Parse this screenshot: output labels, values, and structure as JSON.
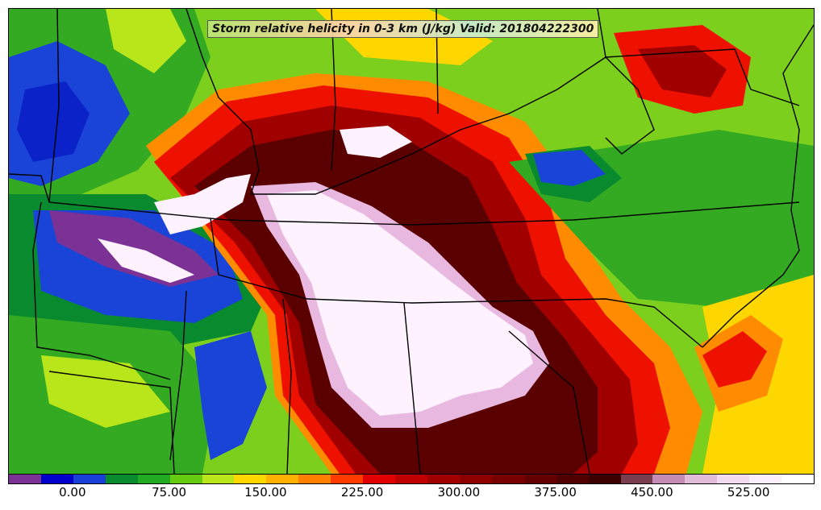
{
  "title": "Storm relative helicity in 0-3 km (J/kg) Valid: 201804222300",
  "colorbar": {
    "colors": [
      "#7b3294",
      "#0000cc",
      "#1a3fd6",
      "#0a8a2e",
      "#22aa22",
      "#66cc11",
      "#b8e61a",
      "#ffd700",
      "#ffb000",
      "#ff7f00",
      "#ff3b00",
      "#e00000",
      "#c00000",
      "#a00000",
      "#8c0000",
      "#780000",
      "#640000",
      "#500000",
      "#3c0000",
      "#7a3d50",
      "#c48cb4",
      "#e0bcd8",
      "#f2daef",
      "#fbeefb",
      "#ffffff"
    ],
    "tick_labels": [
      "0.00",
      "75.00",
      "150.00",
      "225.00",
      "300.00",
      "375.00",
      "450.00",
      "525.00"
    ],
    "range": [
      -50,
      575
    ],
    "tick_values": [
      0,
      75,
      150,
      225,
      300,
      375,
      450,
      525
    ]
  },
  "map_palette": {
    "dark_blue": "#0a22c8",
    "blue": "#1a44d8",
    "purple": "#7b3294",
    "dark_green": "#0a8a2e",
    "green": "#33aa22",
    "light_green": "#7ccf1c",
    "yellow_green": "#b8e61a",
    "yellow": "#ffd700",
    "orange": "#ff8c00",
    "red": "#ee1100",
    "dark_red": "#a00000",
    "maroon": "#5a0000",
    "pink": "#e8b8e0",
    "white": "#fdf2fd"
  }
}
